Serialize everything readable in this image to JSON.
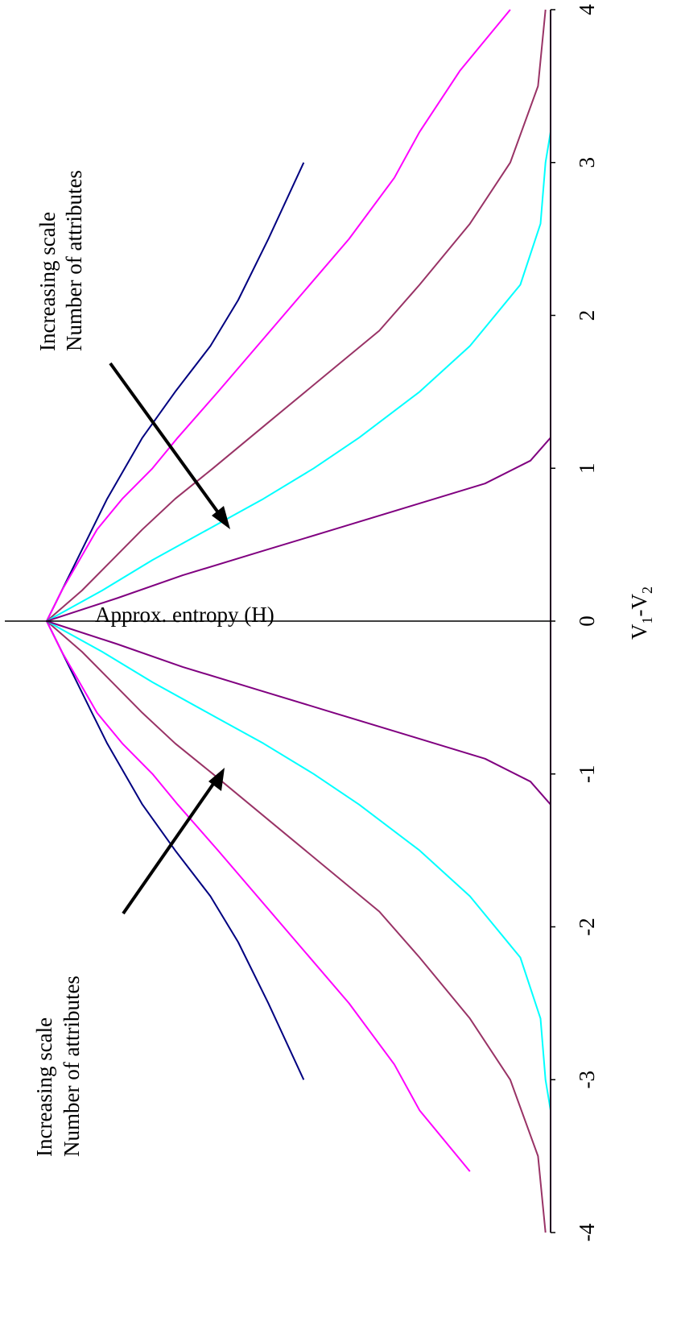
{
  "chart_data": {
    "type": "line",
    "xlabel": {
      "main": "V",
      "sub1": "1",
      "dash": "-V",
      "sub2": "2"
    },
    "ylabel": "Approx. entropy (H)",
    "xlim": [
      -4,
      4
    ],
    "xticks": [
      "-4",
      "-3",
      "-2",
      "-1",
      "0",
      "1",
      "2",
      "3",
      "4"
    ],
    "grid": false,
    "annotations": {
      "upper": [
        "Increasing scale",
        "Number of attributes"
      ],
      "lower": [
        "Increasing scale",
        "Number of attributes"
      ]
    },
    "series": [
      {
        "color": "#000080",
        "x": [
          -3.0,
          -2.5,
          -2.1,
          -1.8,
          -1.5,
          -1.2,
          -1.0,
          -0.8,
          -0.6,
          -0.4,
          -0.2,
          0.0,
          0.2,
          0.4,
          0.6,
          0.8,
          1.0,
          1.2,
          1.5,
          1.8,
          2.1,
          2.5,
          3.0
        ],
        "y": [
          0.49,
          0.56,
          0.62,
          0.675,
          0.745,
          0.81,
          0.845,
          0.88,
          0.91,
          0.94,
          0.97,
          1.0,
          0.97,
          0.94,
          0.91,
          0.88,
          0.845,
          0.81,
          0.745,
          0.675,
          0.62,
          0.56,
          0.49
        ]
      },
      {
        "color": "#ff00ff",
        "x": [
          -3.6,
          -3.2,
          -2.9,
          -2.5,
          -2.0,
          -1.5,
          -1.2,
          -1.0,
          -0.8,
          -0.6,
          -0.4,
          -0.2,
          0.0,
          0.2,
          0.4,
          0.6,
          0.8,
          1.0,
          1.2,
          1.5,
          2.0,
          2.5,
          2.9,
          3.2,
          3.6,
          4.0
        ],
        "y": [
          0.16,
          0.26,
          0.31,
          0.4,
          0.53,
          0.66,
          0.74,
          0.79,
          0.85,
          0.9,
          0.935,
          0.97,
          1.0,
          0.97,
          0.935,
          0.9,
          0.85,
          0.79,
          0.74,
          0.66,
          0.53,
          0.4,
          0.31,
          0.26,
          0.18,
          0.08
        ]
      },
      {
        "color": "#993366",
        "x": [
          -4.0,
          -3.5,
          -3.0,
          -2.6,
          -2.2,
          -1.9,
          -1.6,
          -1.3,
          -1.0,
          -0.8,
          -0.6,
          -0.4,
          -0.2,
          0.0,
          0.2,
          0.4,
          0.6,
          0.8,
          1.0,
          1.3,
          1.6,
          1.9,
          2.2,
          2.6,
          3.0,
          3.5,
          4.0
        ],
        "y": [
          0.01,
          0.025,
          0.08,
          0.16,
          0.26,
          0.34,
          0.45,
          0.56,
          0.67,
          0.745,
          0.81,
          0.87,
          0.93,
          1.0,
          0.93,
          0.87,
          0.81,
          0.745,
          0.67,
          0.56,
          0.45,
          0.34,
          0.26,
          0.16,
          0.08,
          0.025,
          0.01
        ]
      },
      {
        "color": "#00ffff",
        "x": [
          -3.2,
          -3.0,
          -2.6,
          -2.2,
          -1.8,
          -1.5,
          -1.2,
          -1.0,
          -0.8,
          -0.6,
          -0.4,
          -0.2,
          0.0,
          0.2,
          0.4,
          0.6,
          0.8,
          1.0,
          1.2,
          1.5,
          1.8,
          2.2,
          2.6,
          3.0,
          3.2
        ],
        "y": [
          0.0,
          0.01,
          0.02,
          0.06,
          0.16,
          0.26,
          0.38,
          0.47,
          0.57,
          0.68,
          0.79,
          0.89,
          1.0,
          0.89,
          0.79,
          0.68,
          0.57,
          0.47,
          0.38,
          0.26,
          0.16,
          0.06,
          0.02,
          0.01,
          0.0
        ]
      },
      {
        "color": "#800080",
        "x": [
          -1.2,
          -1.05,
          -0.9,
          -0.75,
          -0.6,
          -0.45,
          -0.3,
          -0.15,
          0.0,
          0.15,
          0.3,
          0.45,
          0.6,
          0.75,
          0.9,
          1.05,
          1.2
        ],
        "y": [
          0.0,
          0.04,
          0.13,
          0.28,
          0.43,
          0.58,
          0.73,
          0.86,
          1.0,
          0.86,
          0.73,
          0.58,
          0.43,
          0.28,
          0.13,
          0.04,
          0.0
        ]
      },
      {
        "color": "#800080",
        "x": [
          -4.0,
          4.0
        ],
        "y": [
          0.0,
          0.0
        ]
      }
    ]
  }
}
